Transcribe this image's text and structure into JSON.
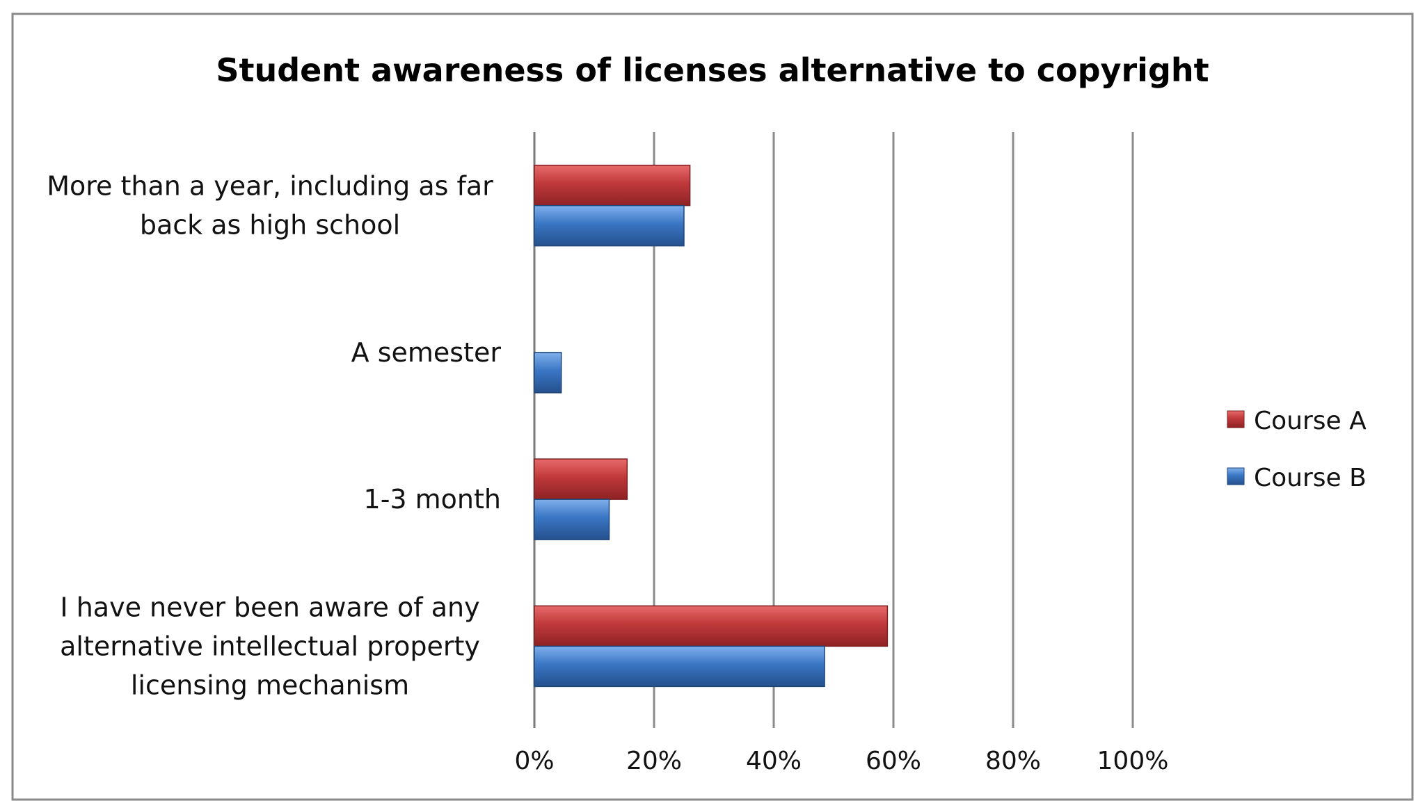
{
  "chart_data": {
    "type": "bar",
    "orientation": "horizontal",
    "title": "Student awareness of licenses alternative to copyright",
    "categories": [
      [
        "More than a year, including as far",
        "back as high school"
      ],
      [
        "A semester"
      ],
      [
        "1-3 month"
      ],
      [
        "I have never been aware of any",
        "alternative intellectual property",
        "licensing mechanism"
      ]
    ],
    "series": [
      {
        "name": "Course A",
        "color": "#c0393b",
        "values": [
          26,
          0,
          15.5,
          59
        ]
      },
      {
        "name": "Course B",
        "color": "#3a76c4",
        "values": [
          25,
          4.5,
          12.5,
          48.5
        ]
      }
    ],
    "x_ticks": [
      "0%",
      "20%",
      "40%",
      "60%",
      "80%",
      "100%"
    ],
    "xlim": [
      0,
      100
    ],
    "grid": true,
    "legend_position": "right"
  }
}
